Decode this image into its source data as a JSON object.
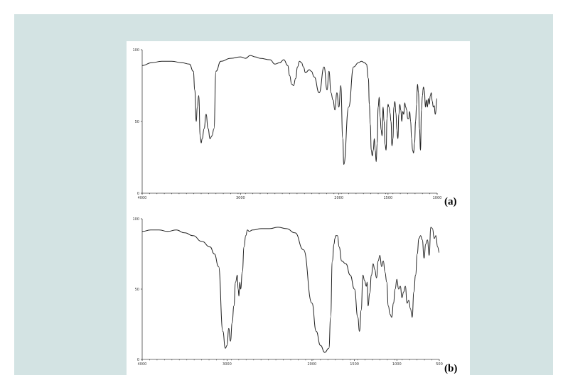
{
  "colors": {
    "background": "#d3e3e3",
    "panel": "#ffffff",
    "trace": "#222222"
  },
  "chart_data": [
    {
      "type": "line",
      "title": "",
      "xlabel": "",
      "ylabel": "",
      "panel_label": "(a)",
      "xlim": [
        4000,
        1000
      ],
      "ylim": [
        0,
        100
      ],
      "x_ticks": [
        "4000",
        "3000",
        "2000",
        "1500",
        "1000"
      ],
      "y_ticks": [
        "100",
        "50",
        "0"
      ],
      "grid": false,
      "series": [
        {
          "x": [
            4000,
            3900,
            3800,
            3700,
            3600,
            3520,
            3480,
            3465,
            3450,
            3440,
            3425,
            3410,
            3400,
            3390,
            3370,
            3350,
            3330,
            3310,
            3290,
            3270,
            3250,
            3200,
            3100,
            3000,
            2950,
            2900,
            2850,
            2800,
            2700,
            2650,
            2600,
            2560,
            2520,
            2500,
            2480,
            2460,
            2440,
            2420,
            2400,
            2380,
            2360,
            2340,
            2300,
            2280,
            2250,
            2200,
            2150,
            2120,
            2100,
            2080,
            2060,
            2040,
            2020,
            2000,
            1980,
            1960,
            1950,
            1900,
            1850,
            1800,
            1770,
            1740,
            1720,
            1700,
            1690,
            1680,
            1670,
            1660,
            1650,
            1640,
            1630,
            1620,
            1610,
            1600,
            1590,
            1580,
            1570,
            1560,
            1550,
            1540,
            1530,
            1520,
            1510,
            1500,
            1490,
            1480,
            1470,
            1460,
            1450,
            1440,
            1430,
            1420,
            1410,
            1400,
            1390,
            1380,
            1370,
            1360,
            1350,
            1340,
            1330,
            1320,
            1310,
            1300,
            1290,
            1280,
            1270,
            1260,
            1250,
            1240,
            1230,
            1220,
            1210,
            1200,
            1190,
            1180,
            1170,
            1160,
            1150,
            1140,
            1130,
            1120,
            1110,
            1100,
            1090,
            1080,
            1070,
            1060,
            1050,
            1040,
            1030,
            1020,
            1000
          ],
          "y": [
            89,
            91,
            92,
            92,
            91,
            90,
            85,
            72,
            50,
            60,
            68,
            40,
            35,
            38,
            45,
            55,
            45,
            38,
            40,
            45,
            85,
            92,
            94,
            95,
            94,
            96,
            95,
            94,
            93,
            90,
            91,
            93,
            89,
            82,
            76,
            75,
            80,
            88,
            92,
            91,
            88,
            84,
            86,
            85,
            81,
            70,
            88,
            72,
            85,
            70,
            65,
            58,
            70,
            60,
            75,
            38,
            20,
            60,
            88,
            91,
            92,
            91,
            90,
            80,
            62,
            48,
            30,
            26,
            30,
            38,
            30,
            22,
            35,
            60,
            67,
            53,
            44,
            40,
            60,
            50,
            34,
            30,
            52,
            62,
            60,
            56,
            50,
            33,
            38,
            60,
            64,
            56,
            44,
            38,
            55,
            62,
            58,
            50,
            57,
            55,
            63,
            60,
            58,
            52,
            52,
            57,
            50,
            38,
            30,
            28,
            35,
            50,
            62,
            76,
            70,
            45,
            30,
            58,
            68,
            74,
            72,
            60,
            65,
            60,
            66,
            62,
            68,
            70,
            64,
            60,
            61,
            55,
            66
          ],
          "smooth": true
        }
      ]
    },
    {
      "type": "line",
      "title": "",
      "xlabel": "",
      "ylabel": "",
      "panel_label": "(b)",
      "xlim": [
        4000,
        500
      ],
      "ylim": [
        0,
        100
      ],
      "x_ticks": [
        "4000",
        "3000",
        "2000",
        "1500",
        "1000",
        "500"
      ],
      "y_ticks": [
        "100",
        "50",
        "0"
      ],
      "grid": false,
      "series": [
        {
          "x": [
            4000,
            3900,
            3800,
            3700,
            3600,
            3500,
            3400,
            3300,
            3200,
            3150,
            3100,
            3050,
            3020,
            3000,
            2980,
            2960,
            2940,
            2920,
            2900,
            2880,
            2870,
            2860,
            2850,
            2840,
            2820,
            2800,
            2780,
            2760,
            2740,
            2700,
            2600,
            2500,
            2400,
            2300,
            2200,
            2100,
            2000,
            1950,
            1900,
            1850,
            1800,
            1780,
            1760,
            1740,
            1730,
            1720,
            1700,
            1680,
            1650,
            1600,
            1550,
            1500,
            1460,
            1440,
            1420,
            1400,
            1380,
            1360,
            1350,
            1340,
            1320,
            1300,
            1280,
            1260,
            1240,
            1220,
            1200,
            1180,
            1160,
            1140,
            1120,
            1100,
            1080,
            1060,
            1040,
            1020,
            1000,
            980,
            960,
            940,
            920,
            900,
            880,
            860,
            840,
            820,
            800,
            780,
            760,
            740,
            720,
            700,
            680,
            660,
            640,
            620,
            600,
            580,
            560,
            540,
            520,
            500
          ],
          "y": [
            91,
            92,
            92,
            91,
            92,
            90,
            88,
            84,
            80,
            75,
            66,
            20,
            8,
            10,
            22,
            13,
            26,
            38,
            55,
            60,
            50,
            45,
            55,
            50,
            62,
            80,
            88,
            92,
            91,
            92,
            93,
            93,
            94,
            93,
            90,
            78,
            40,
            20,
            10,
            5,
            8,
            30,
            70,
            82,
            86,
            88,
            88,
            80,
            70,
            68,
            60,
            50,
            30,
            20,
            35,
            60,
            56,
            52,
            55,
            38,
            47,
            60,
            68,
            64,
            58,
            70,
            74,
            66,
            70,
            62,
            55,
            38,
            32,
            30,
            40,
            50,
            57,
            50,
            52,
            44,
            48,
            52,
            40,
            42,
            36,
            30,
            48,
            60,
            75,
            86,
            88,
            85,
            72,
            82,
            85,
            74,
            94,
            93,
            86,
            88,
            80,
            76
          ],
          "smooth": true
        }
      ]
    }
  ]
}
